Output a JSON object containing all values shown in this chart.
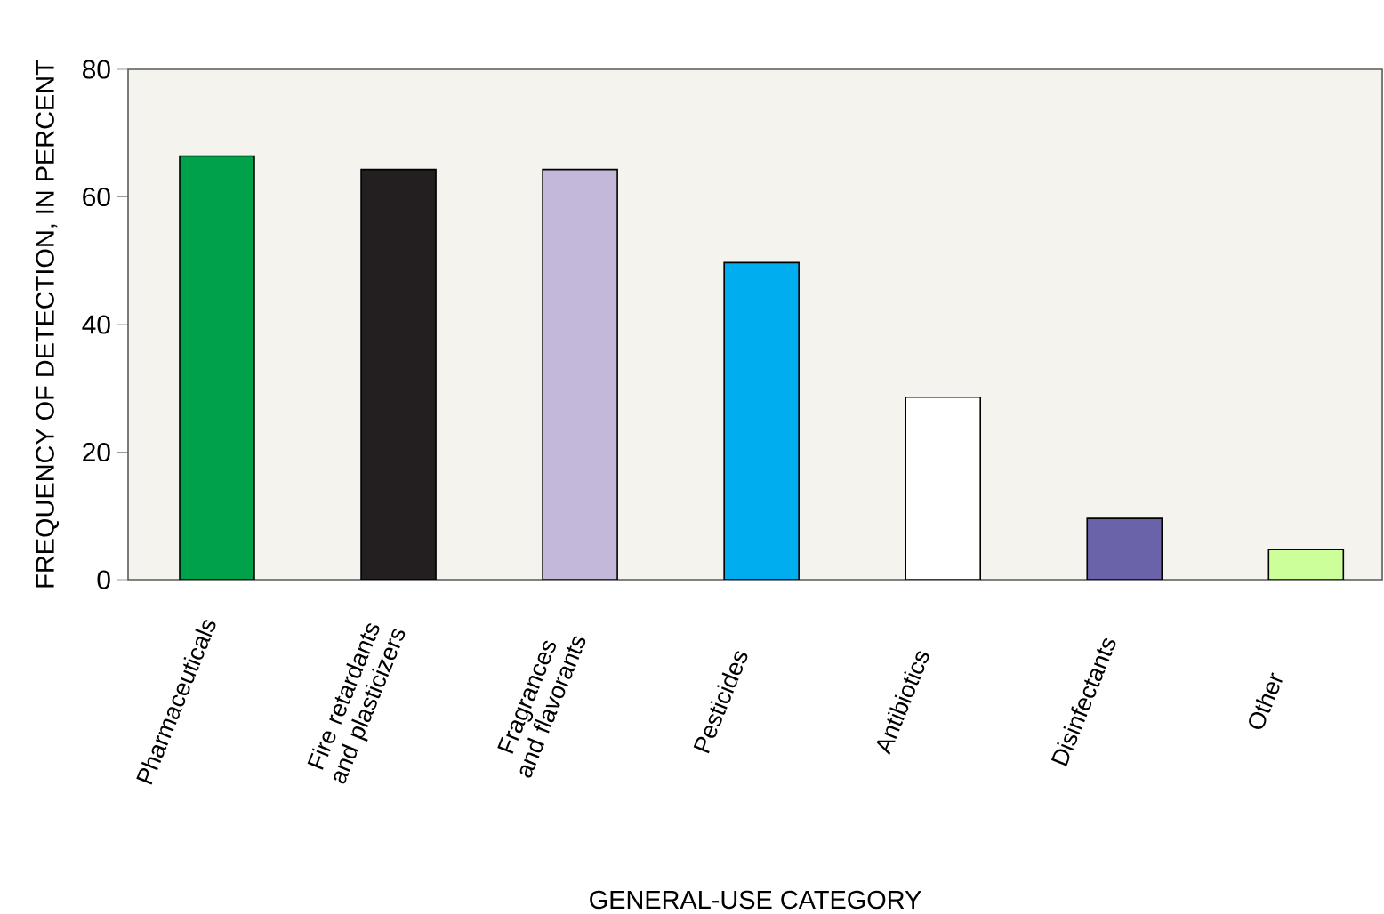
{
  "chart_data": {
    "type": "bar",
    "xlabel": "GENERAL-USE CATEGORY",
    "ylabel": "FREQUENCY OF DETECTION, IN PERCENT",
    "categories": [
      "Pharmaceuticals",
      "Fire retardants and plasticizers",
      "Fragrances and flavorants",
      "Pesticides",
      "Antibiotics",
      "Disinfectants",
      "Other"
    ],
    "values": [
      66.4,
      64.3,
      64.3,
      49.7,
      28.6,
      9.6,
      4.7
    ],
    "colors": [
      "#00a14b",
      "#231f20",
      "#c3b8da",
      "#00aeef",
      "#ffffff",
      "#6a63a9",
      "#ccff99"
    ],
    "ylim": [
      0,
      80
    ],
    "yticks": [
      0,
      20,
      40,
      60,
      80
    ]
  }
}
